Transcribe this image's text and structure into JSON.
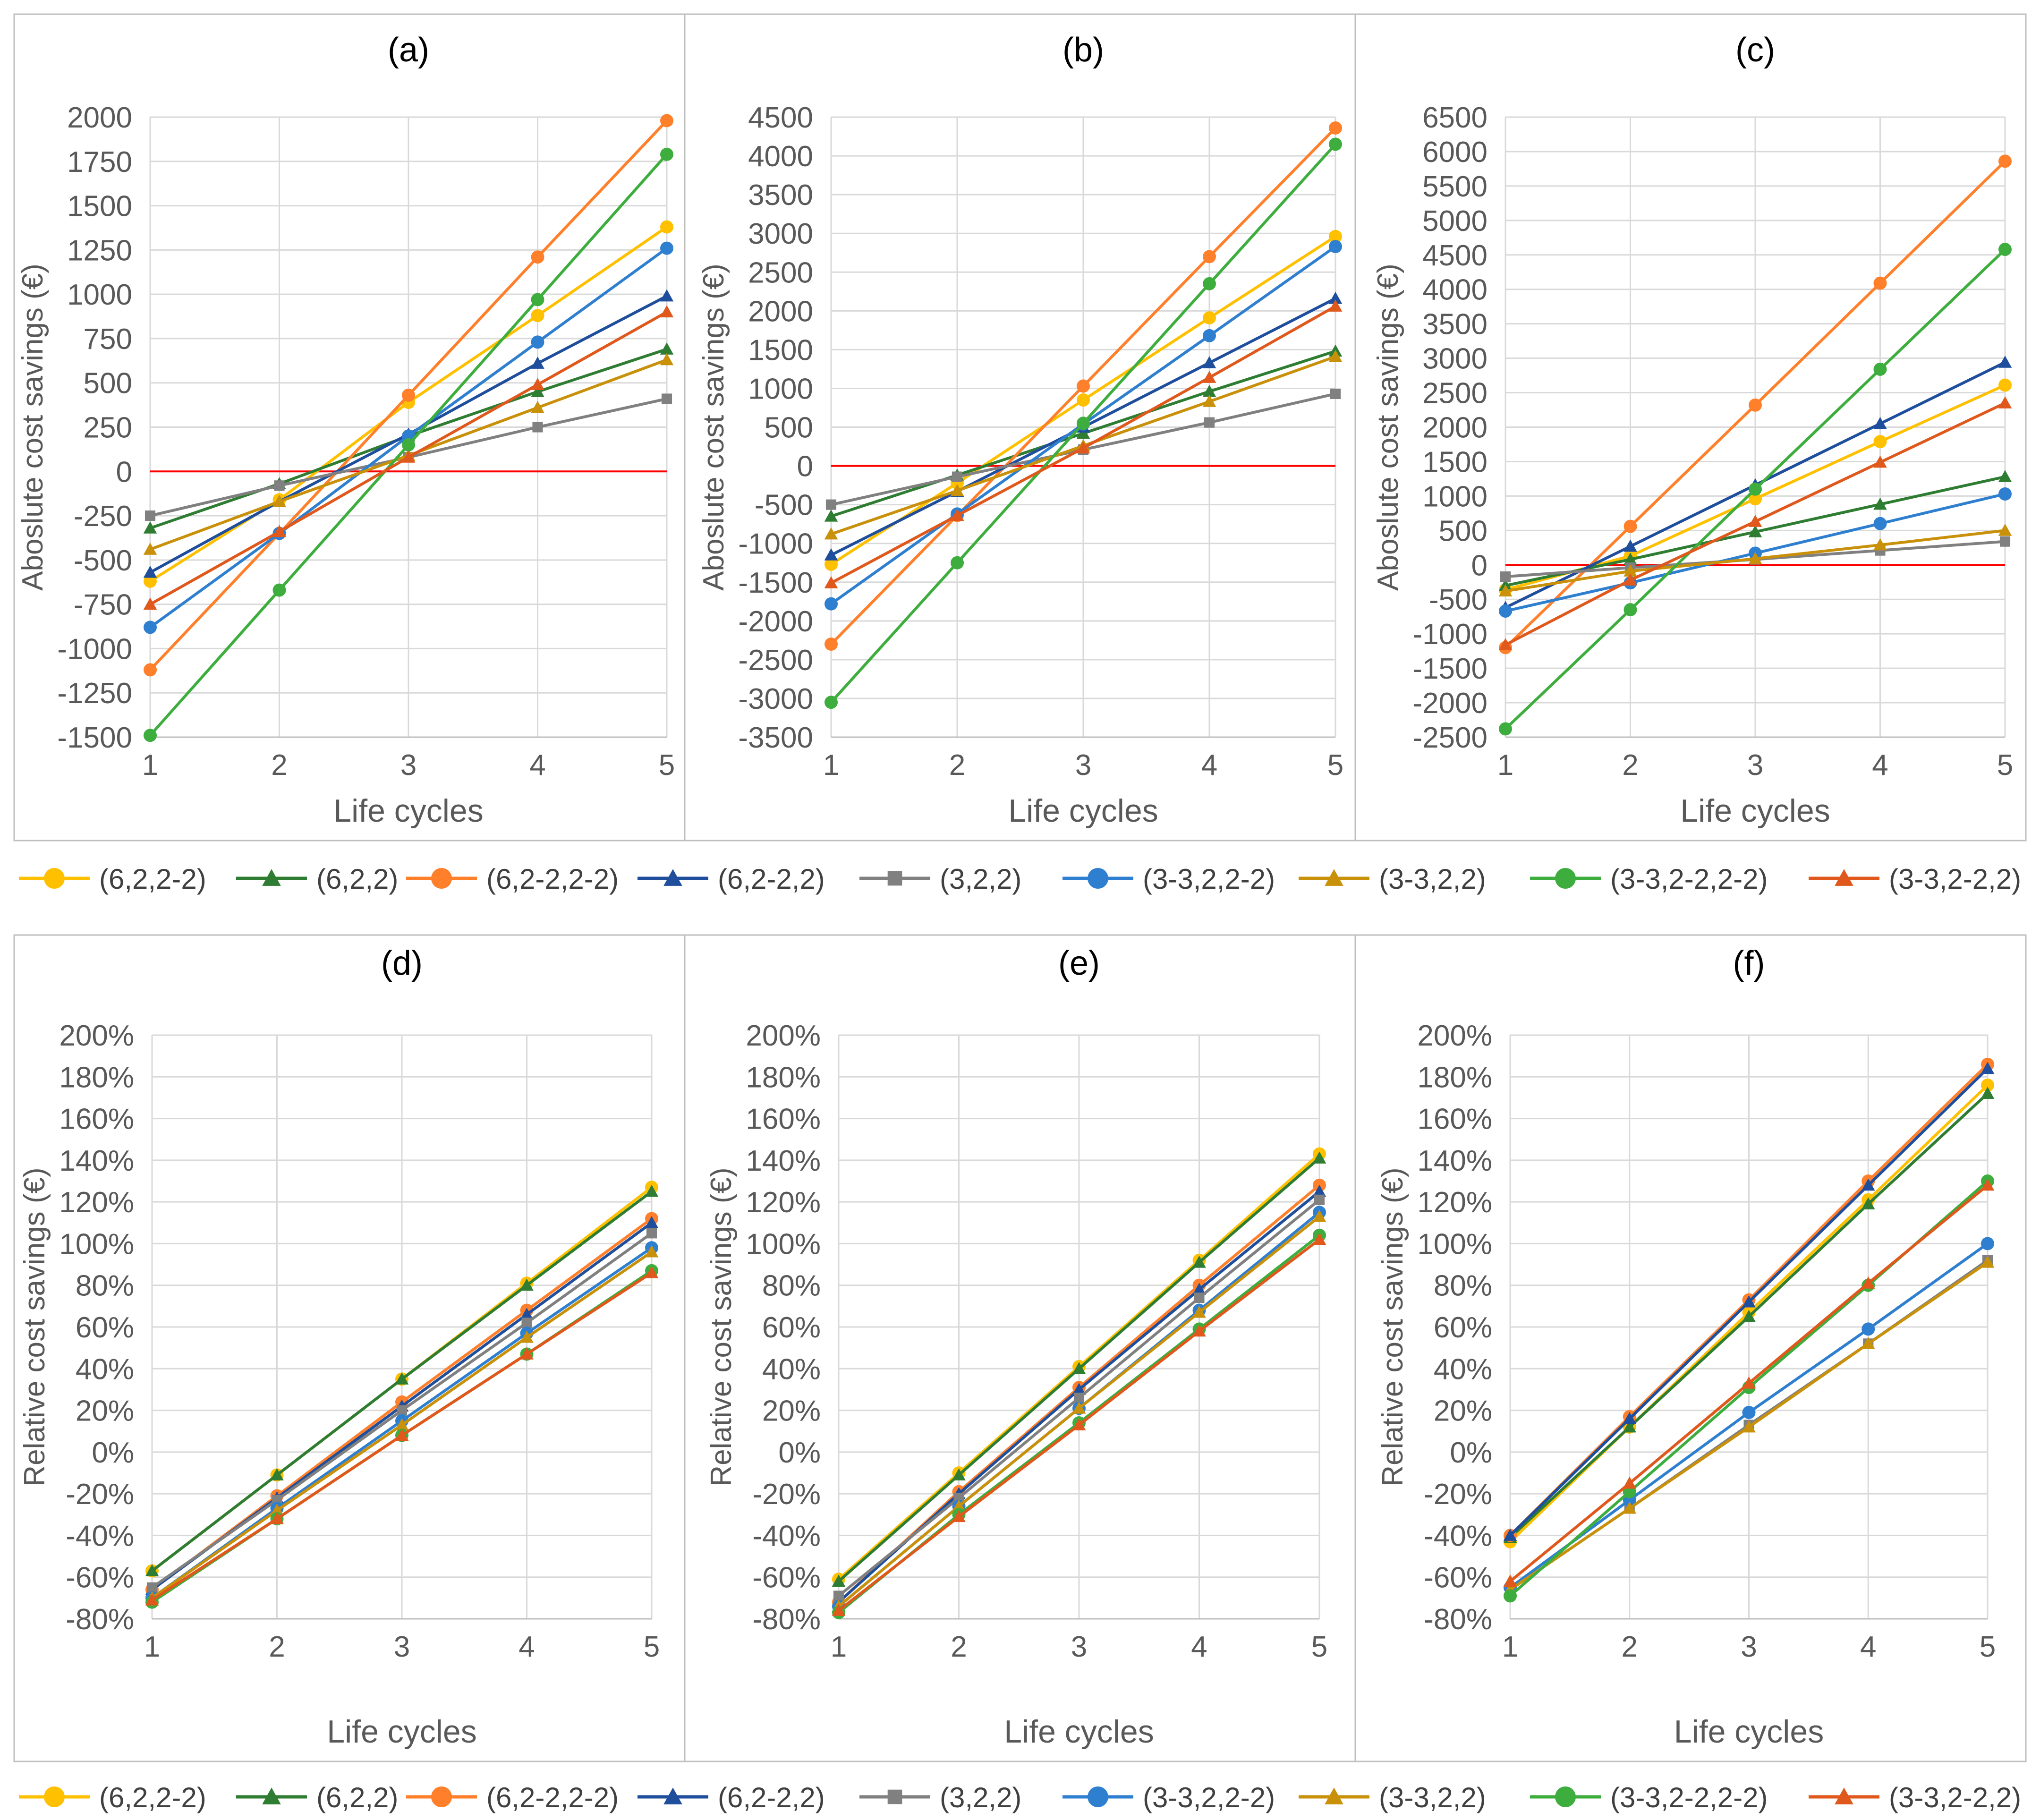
{
  "series_styles": [
    {
      "name": "(6,2,2-2)",
      "color": "#FFC000",
      "marker": "circle"
    },
    {
      "name": "(6,2,2)",
      "color": "#2E7D32",
      "marker": "triangle"
    },
    {
      "name": "(6,2-2,2-2)",
      "color": "#FF7F2A",
      "marker": "circle"
    },
    {
      "name": "(6,2-2,2)",
      "color": "#1F4E9C",
      "marker": "triangle"
    },
    {
      "name": "(3,2,2)",
      "color": "#808080",
      "marker": "square"
    },
    {
      "name": "(3-3,2,2-2)",
      "color": "#2F7FD0",
      "marker": "circle"
    },
    {
      "name": "(3-3,2,2)",
      "color": "#C9900A",
      "marker": "triangle"
    },
    {
      "name": "(3-3,2-2,2-2)",
      "color": "#3DAE3D",
      "marker": "circle"
    },
    {
      "name": "(3-3,2-2,2)",
      "color": "#E0581C",
      "marker": "triangle"
    }
  ],
  "legend_top": {
    "entries": [
      "(6,2,2-2)",
      "(6,2,2)",
      "(6,2-2,2-2)",
      "(6,2-2,2)",
      "(3,2,2)",
      "(3-3,2,2-2)",
      "(3-3,2,2)",
      "(3-3,2-2,2-2)",
      "(3-3,2-2,2)"
    ]
  },
  "legend_bottom": {
    "entries": [
      "(6,2,2-2)",
      "(6,2,2)",
      "(6,2-2,2-2)",
      "(6,2-2,2)",
      "(3,2,2)",
      "(3-3,2,2-2)",
      "(3-3,2,2)",
      "(3-3,2-2,2-2)",
      "(3-3,2-2,2)"
    ]
  },
  "chart_data": [
    {
      "type": "line",
      "title": "(a)",
      "xlabel": "Life cycles",
      "ylabel": "Aboslute cost savings (€)",
      "x": [
        1,
        2,
        3,
        4,
        5
      ],
      "ylim": [
        -1500,
        2000
      ],
      "ystep": 250,
      "yformat": "number",
      "zero_line": true,
      "series": [
        {
          "name": "(6,2,2-2)",
          "values": [
            -620,
            -160,
            390,
            880,
            1380
          ]
        },
        {
          "name": "(6,2,2)",
          "values": [
            -320,
            -70,
            200,
            450,
            690
          ]
        },
        {
          "name": "(6,2-2,2-2)",
          "values": [
            -1120,
            -350,
            430,
            1210,
            1980
          ]
        },
        {
          "name": "(6,2-2,2)",
          "values": [
            -570,
            -170,
            210,
            610,
            990
          ]
        },
        {
          "name": "(3,2,2)",
          "values": [
            -250,
            -80,
            80,
            250,
            410
          ]
        },
        {
          "name": "(3-3,2,2-2)",
          "values": [
            -880,
            -350,
            200,
            730,
            1260
          ]
        },
        {
          "name": "(3-3,2,2)",
          "values": [
            -440,
            -170,
            90,
            360,
            630
          ]
        },
        {
          "name": "(3-3,2-2,2-2)",
          "values": [
            -1490,
            -670,
            150,
            970,
            1790
          ]
        },
        {
          "name": "(3-3,2-2,2)",
          "values": [
            -750,
            -340,
            80,
            490,
            900
          ]
        }
      ]
    },
    {
      "type": "line",
      "title": "(b)",
      "xlabel": "Life cycles",
      "ylabel": "Aboslute cost savings (€)",
      "x": [
        1,
        2,
        3,
        4,
        5
      ],
      "ylim": [
        -3500,
        4500
      ],
      "ystep": 500,
      "yformat": "number",
      "zero_line": true,
      "series": [
        {
          "name": "(6,2,2-2)",
          "values": [
            -1270,
            -220,
            850,
            1910,
            2960
          ]
        },
        {
          "name": "(6,2,2)",
          "values": [
            -650,
            -120,
            420,
            960,
            1480
          ]
        },
        {
          "name": "(6,2-2,2-2)",
          "values": [
            -2300,
            -640,
            1030,
            2700,
            4360
          ]
        },
        {
          "name": "(6,2-2,2)",
          "values": [
            -1150,
            -330,
            500,
            1330,
            2160
          ]
        },
        {
          "name": "(3,2,2)",
          "values": [
            -500,
            -140,
            210,
            560,
            930
          ]
        },
        {
          "name": "(3-3,2,2-2)",
          "values": [
            -1780,
            -620,
            540,
            1680,
            2830
          ]
        },
        {
          "name": "(3-3,2,2)",
          "values": [
            -880,
            -320,
            260,
            830,
            1410
          ]
        },
        {
          "name": "(3-3,2-2,2-2)",
          "values": [
            -3050,
            -1250,
            550,
            2350,
            4150
          ]
        },
        {
          "name": "(3-3,2-2,2)",
          "values": [
            -1510,
            -640,
            230,
            1140,
            2060
          ]
        }
      ]
    },
    {
      "type": "line",
      "title": "(c)",
      "xlabel": "Life cycles",
      "ylabel": "Aboslute cost savings (€)",
      "x": [
        1,
        2,
        3,
        4,
        5
      ],
      "ylim": [
        -2500,
        6500
      ],
      "ystep": 500,
      "yformat": "number",
      "zero_line": true,
      "series": [
        {
          "name": "(6,2,2-2)",
          "values": [
            -360,
            130,
            960,
            1790,
            2610
          ]
        },
        {
          "name": "(6,2,2)",
          "values": [
            -300,
            80,
            480,
            880,
            1280
          ]
        },
        {
          "name": "(6,2-2,2-2)",
          "values": [
            -1200,
            560,
            2320,
            4090,
            5860
          ]
        },
        {
          "name": "(6,2-2,2)",
          "values": [
            -620,
            270,
            1160,
            2050,
            2940
          ]
        },
        {
          "name": "(3,2,2)",
          "values": [
            -170,
            -40,
            80,
            210,
            340
          ]
        },
        {
          "name": "(3-3,2,2-2)",
          "values": [
            -670,
            -260,
            170,
            600,
            1030
          ]
        },
        {
          "name": "(3-3,2,2)",
          "values": [
            -380,
            -90,
            90,
            290,
            500
          ]
        },
        {
          "name": "(3-3,2-2,2-2)",
          "values": [
            -2380,
            -650,
            1100,
            2840,
            4580
          ]
        },
        {
          "name": "(3-3,2-2,2)",
          "values": [
            -1160,
            -220,
            630,
            1490,
            2350
          ]
        }
      ]
    },
    {
      "type": "line",
      "title": "(d)",
      "xlabel": "Life cycles",
      "ylabel": "Relative cost savings (€)",
      "x": [
        1,
        2,
        3,
        4,
        5
      ],
      "ylim": [
        -80,
        200
      ],
      "ystep": 20,
      "yformat": "percent",
      "zero_line": false,
      "series": [
        {
          "name": "(6,2,2-2)",
          "values": [
            -57,
            -11,
            35,
            81,
            127
          ]
        },
        {
          "name": "(6,2,2)",
          "values": [
            -57,
            -11,
            35,
            80,
            125
          ]
        },
        {
          "name": "(6,2-2,2-2)",
          "values": [
            -66,
            -21,
            24,
            68,
            112
          ]
        },
        {
          "name": "(6,2-2,2)",
          "values": [
            -66,
            -22,
            22,
            66,
            110
          ]
        },
        {
          "name": "(3,2,2)",
          "values": [
            -65,
            -23,
            20,
            62,
            105
          ]
        },
        {
          "name": "(3-3,2,2-2)",
          "values": [
            -70,
            -27,
            15,
            57,
            98
          ]
        },
        {
          "name": "(3-3,2,2)",
          "values": [
            -70,
            -28,
            13,
            55,
            96
          ]
        },
        {
          "name": "(3-3,2-2,2-2)",
          "values": [
            -72,
            -32,
            8,
            47,
            87
          ]
        },
        {
          "name": "(3-3,2-2,2)",
          "values": [
            -71,
            -32,
            8,
            47,
            86
          ]
        }
      ]
    },
    {
      "type": "line",
      "title": "(e)",
      "xlabel": "Life cycles",
      "ylabel": "Relative cost savings (€)",
      "x": [
        1,
        2,
        3,
        4,
        5
      ],
      "ylim": [
        -80,
        200
      ],
      "ystep": 20,
      "yformat": "percent",
      "zero_line": false,
      "series": [
        {
          "name": "(6,2,2-2)",
          "values": [
            -61,
            -10,
            41,
            92,
            143
          ]
        },
        {
          "name": "(6,2,2)",
          "values": [
            -62,
            -11,
            40,
            91,
            141
          ]
        },
        {
          "name": "(6,2-2,2-2)",
          "values": [
            -72,
            -19,
            31,
            80,
            128
          ]
        },
        {
          "name": "(6,2-2,2)",
          "values": [
            -72,
            -20,
            30,
            78,
            125
          ]
        },
        {
          "name": "(3,2,2)",
          "values": [
            -69,
            -22,
            26,
            74,
            121
          ]
        },
        {
          "name": "(3-3,2,2-2)",
          "values": [
            -74,
            -26,
            21,
            68,
            115
          ]
        },
        {
          "name": "(3-3,2,2)",
          "values": [
            -74,
            -26,
            21,
            67,
            113
          ]
        },
        {
          "name": "(3-3,2-2,2-2)",
          "values": [
            -77,
            -30,
            14,
            59,
            104
          ]
        },
        {
          "name": "(3-3,2-2,2)",
          "values": [
            -76,
            -31,
            13,
            58,
            102
          ]
        }
      ]
    },
    {
      "type": "line",
      "title": "(f)",
      "xlabel": "Life cycles",
      "ylabel": "Relative cost savings (€)",
      "x": [
        1,
        2,
        3,
        4,
        5
      ],
      "ylim": [
        -80,
        200
      ],
      "ystep": 20,
      "yformat": "percent",
      "zero_line": false,
      "series": [
        {
          "name": "(6,2,2-2)",
          "values": [
            -43,
            12,
            67,
            121,
            176
          ]
        },
        {
          "name": "(6,2,2)",
          "values": [
            -41,
            12,
            65,
            119,
            172
          ]
        },
        {
          "name": "(6,2-2,2-2)",
          "values": [
            -40,
            17,
            73,
            130,
            186
          ]
        },
        {
          "name": "(6,2-2,2)",
          "values": [
            -40,
            16,
            72,
            128,
            184
          ]
        },
        {
          "name": "(3,2,2)",
          "values": [
            -66,
            -27,
            13,
            52,
            92
          ]
        },
        {
          "name": "(3-3,2,2-2)",
          "values": [
            -65,
            -23,
            19,
            59,
            100
          ]
        },
        {
          "name": "(3-3,2,2)",
          "values": [
            -66,
            -27,
            12,
            52,
            91
          ]
        },
        {
          "name": "(3-3,2-2,2-2)",
          "values": [
            -69,
            -19,
            31,
            80,
            130
          ]
        },
        {
          "name": "(3-3,2-2,2)",
          "values": [
            -62,
            -15,
            33,
            81,
            128
          ]
        }
      ]
    }
  ]
}
